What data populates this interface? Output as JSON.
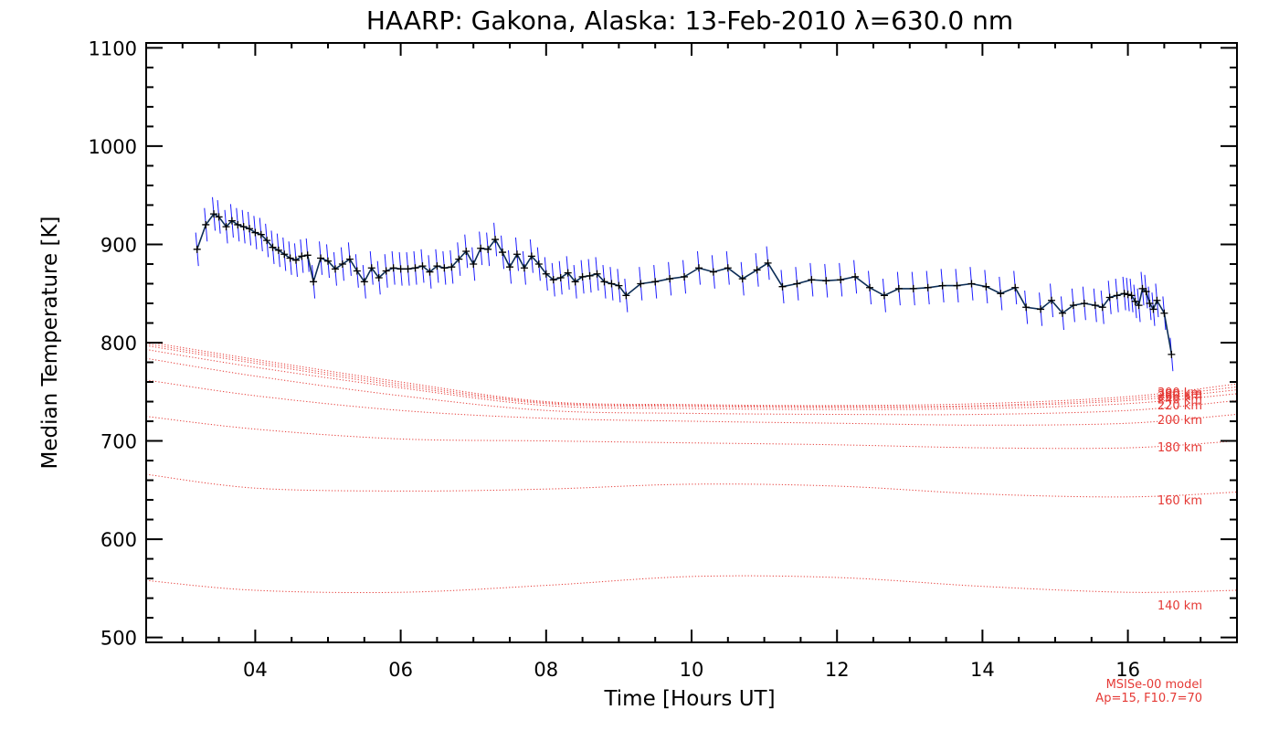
{
  "chart_data": {
    "type": "line",
    "title": "HAARP: Gakona,  Alaska: 13-Feb-2010 λ=630.0 nm",
    "xlabel": "Time [Hours UT]",
    "ylabel": "Median Temperature [K]",
    "xlim": [
      2.5,
      17.5
    ],
    "ylim": [
      495,
      1105
    ],
    "x_ticks": [
      4,
      6,
      8,
      10,
      12,
      14,
      16
    ],
    "x_tick_labels": [
      "04",
      "06",
      "08",
      "10",
      "12",
      "14",
      "16"
    ],
    "y_ticks": [
      500,
      600,
      700,
      800,
      900,
      1000,
      1100
    ],
    "y_tick_labels": [
      "500",
      "600",
      "700",
      "800",
      "900",
      "1000",
      "1100"
    ],
    "grid": false,
    "colors": {
      "measured_line": "#0d2e57",
      "error_bars": "#1a1aff",
      "markers": "#000000",
      "model": "#e53935",
      "axes": "#000000"
    },
    "measured": {
      "error": 17,
      "points": [
        [
          3.2,
          895
        ],
        [
          3.32,
          920
        ],
        [
          3.43,
          931
        ],
        [
          3.5,
          928
        ],
        [
          3.6,
          918
        ],
        [
          3.68,
          924
        ],
        [
          3.76,
          920
        ],
        [
          3.84,
          918
        ],
        [
          3.92,
          916
        ],
        [
          4.0,
          912
        ],
        [
          4.08,
          910
        ],
        [
          4.16,
          904
        ],
        [
          4.24,
          897
        ],
        [
          4.32,
          894
        ],
        [
          4.4,
          890
        ],
        [
          4.48,
          886
        ],
        [
          4.56,
          884
        ],
        [
          4.64,
          888
        ],
        [
          4.72,
          889
        ],
        [
          4.8,
          862
        ],
        [
          4.9,
          886
        ],
        [
          5.0,
          883
        ],
        [
          5.1,
          875
        ],
        [
          5.2,
          880
        ],
        [
          5.3,
          885
        ],
        [
          5.4,
          873
        ],
        [
          5.5,
          862
        ],
        [
          5.6,
          876
        ],
        [
          5.7,
          866
        ],
        [
          5.8,
          873
        ],
        [
          5.9,
          876
        ],
        [
          6.0,
          875
        ],
        [
          6.1,
          875
        ],
        [
          6.2,
          876
        ],
        [
          6.3,
          878
        ],
        [
          6.4,
          872
        ],
        [
          6.5,
          878
        ],
        [
          6.6,
          876
        ],
        [
          6.7,
          877
        ],
        [
          6.8,
          885
        ],
        [
          6.9,
          893
        ],
        [
          7.0,
          880
        ],
        [
          7.1,
          896
        ],
        [
          7.2,
          895
        ],
        [
          7.3,
          905
        ],
        [
          7.4,
          892
        ],
        [
          7.5,
          877
        ],
        [
          7.6,
          890
        ],
        [
          7.7,
          876
        ],
        [
          7.8,
          888
        ],
        [
          7.9,
          880
        ],
        [
          8.0,
          870
        ],
        [
          8.1,
          864
        ],
        [
          8.2,
          866
        ],
        [
          8.3,
          871
        ],
        [
          8.4,
          862
        ],
        [
          8.5,
          867
        ],
        [
          8.6,
          868
        ],
        [
          8.7,
          870
        ],
        [
          8.8,
          862
        ],
        [
          8.9,
          860
        ],
        [
          9.0,
          858
        ],
        [
          9.1,
          848
        ],
        [
          9.3,
          860
        ],
        [
          9.5,
          862
        ],
        [
          9.7,
          865
        ],
        [
          9.9,
          867
        ],
        [
          10.1,
          876
        ],
        [
          10.3,
          872
        ],
        [
          10.5,
          876
        ],
        [
          10.7,
          865
        ],
        [
          10.9,
          874
        ],
        [
          11.05,
          881
        ],
        [
          11.25,
          857
        ],
        [
          11.45,
          860
        ],
        [
          11.65,
          864
        ],
        [
          11.85,
          863
        ],
        [
          12.05,
          864
        ],
        [
          12.25,
          867
        ],
        [
          12.45,
          856
        ],
        [
          12.65,
          848
        ],
        [
          12.85,
          855
        ],
        [
          13.05,
          855
        ],
        [
          13.25,
          856
        ],
        [
          13.45,
          858
        ],
        [
          13.65,
          858
        ],
        [
          13.85,
          860
        ],
        [
          14.05,
          857
        ],
        [
          14.25,
          850
        ],
        [
          14.45,
          856
        ],
        [
          14.6,
          836
        ],
        [
          14.8,
          834
        ],
        [
          14.95,
          843
        ],
        [
          15.1,
          830
        ],
        [
          15.25,
          838
        ],
        [
          15.4,
          840
        ],
        [
          15.55,
          838
        ],
        [
          15.65,
          836
        ],
        [
          15.75,
          846
        ],
        [
          15.85,
          848
        ],
        [
          15.95,
          850
        ],
        [
          16.0,
          849
        ],
        [
          16.05,
          848
        ],
        [
          16.1,
          842
        ],
        [
          16.15,
          838
        ],
        [
          16.2,
          855
        ],
        [
          16.25,
          852
        ],
        [
          16.3,
          840
        ],
        [
          16.35,
          834
        ],
        [
          16.4,
          843
        ],
        [
          16.5,
          830
        ],
        [
          16.6,
          788
        ]
      ]
    },
    "model_note_line1": "MSISe-00 model",
    "model_note_line2": "Ap=15, F10.7=70",
    "model_series": [
      {
        "name": "140 km",
        "label_y": 533,
        "x": [
          2.5,
          4,
          6,
          8,
          10,
          12,
          14,
          16,
          17.5
        ],
        "values": [
          558,
          548,
          546,
          553,
          562,
          561,
          552,
          546,
          548
        ]
      },
      {
        "name": "160 km",
        "label_y": 640,
        "x": [
          2.5,
          4,
          6,
          8,
          10,
          12,
          14,
          16,
          17.5
        ],
        "values": [
          666,
          652,
          649,
          651,
          656,
          654,
          646,
          643,
          648
        ]
      },
      {
        "name": "180 km",
        "label_y": 694,
        "x": [
          2.5,
          4,
          6,
          8,
          10,
          12,
          14,
          16,
          17.5
        ],
        "values": [
          725,
          712,
          702,
          700,
          698,
          696,
          693,
          693,
          700
        ]
      },
      {
        "name": "200 km",
        "label_y": 722,
        "x": [
          2.5,
          4,
          6,
          8,
          10,
          12,
          14,
          16,
          17.5
        ],
        "values": [
          762,
          746,
          731,
          723,
          720,
          718,
          716,
          718,
          727
        ]
      },
      {
        "name": "220 km",
        "label_y": 737,
        "x": [
          2.5,
          4,
          6,
          8,
          10,
          12,
          14,
          16,
          17.5
        ],
        "values": [
          784,
          766,
          746,
          731,
          728,
          727,
          727,
          731,
          741
        ]
      },
      {
        "name": "240 km",
        "label_y": 743,
        "x": [
          2.5,
          4,
          6,
          8,
          10,
          12,
          14,
          16,
          17.5
        ],
        "values": [
          793,
          775,
          754,
          736,
          733,
          732,
          733,
          738,
          748
        ]
      },
      {
        "name": "260 km",
        "label_y": 746,
        "x": [
          2.5,
          4,
          6,
          8,
          10,
          12,
          14,
          16,
          17.5
        ],
        "values": [
          797,
          779,
          756,
          738,
          735,
          734,
          735,
          741,
          752
        ]
      },
      {
        "name": "280 km",
        "label_y": 748,
        "x": [
          2.5,
          4,
          6,
          8,
          10,
          12,
          14,
          16,
          17.5
        ],
        "values": [
          799,
          781,
          758,
          739,
          736,
          735,
          736,
          743,
          755
        ]
      },
      {
        "name": "300 km",
        "label_y": 750,
        "x": [
          2.5,
          4,
          6,
          8,
          10,
          12,
          14,
          16,
          17.5
        ],
        "values": [
          801,
          783,
          760,
          740,
          737,
          736,
          738,
          745,
          758
        ]
      }
    ]
  }
}
